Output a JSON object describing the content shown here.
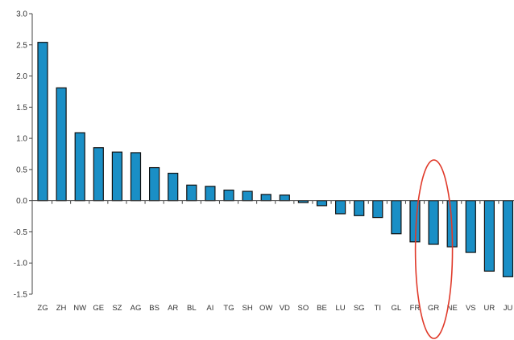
{
  "chart_data": {
    "type": "bar",
    "title": "",
    "xlabel": "",
    "ylabel": "",
    "ylim": [
      -1.5,
      3.0
    ],
    "yticks": [
      "3.0",
      "2.5",
      "2.0",
      "1.5",
      "1.0",
      "0.5",
      "0.0",
      "-0.5",
      "-1.0",
      "-1.5"
    ],
    "grid": false,
    "legend": "none",
    "categories": [
      "ZG",
      "ZH",
      "NW",
      "GE",
      "SZ",
      "AG",
      "BS",
      "AR",
      "BL",
      "AI",
      "TG",
      "SH",
      "OW",
      "VD",
      "SO",
      "BE",
      "LU",
      "SG",
      "TI",
      "GL",
      "FR",
      "GR",
      "NE",
      "VS",
      "UR",
      "JU"
    ],
    "values": [
      2.54,
      1.81,
      1.09,
      0.85,
      0.78,
      0.77,
      0.53,
      0.44,
      0.25,
      0.23,
      0.17,
      0.15,
      0.1,
      0.09,
      -0.03,
      -0.08,
      -0.21,
      -0.24,
      -0.27,
      -0.53,
      -0.66,
      -0.7,
      -0.74,
      -0.83,
      -1.13,
      -1.22
    ],
    "bar_color": "#1a8fc6",
    "highlight": {
      "category": "GR",
      "shape": "ellipse",
      "color": "#e03a2a"
    }
  }
}
